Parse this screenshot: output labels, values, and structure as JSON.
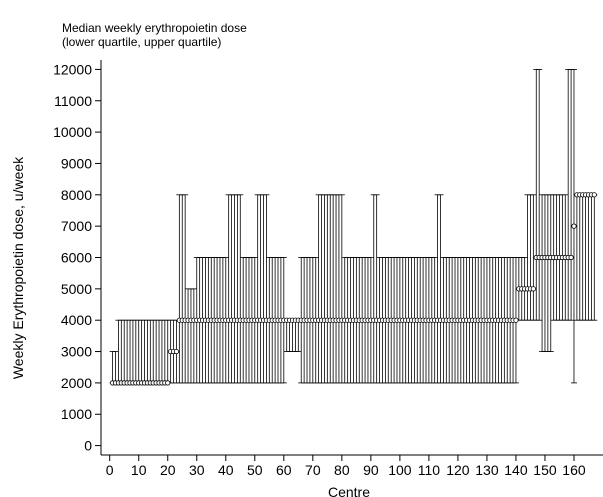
{
  "chart_data": {
    "type": "scatter",
    "title": "Median weekly erythropoietin dose",
    "subtitle": "(lower quartile, upper quartile)",
    "xlabel": "Centre",
    "ylabel": "Weekly Erythropoietin dose, u/week",
    "xlim": [
      -3,
      170
    ],
    "ylim": [
      -300,
      12300
    ],
    "xticks": [
      0,
      10,
      20,
      30,
      40,
      50,
      60,
      70,
      80,
      90,
      100,
      110,
      120,
      130,
      140,
      150,
      160
    ],
    "yticks": [
      0,
      1000,
      2000,
      3000,
      4000,
      5000,
      6000,
      7000,
      8000,
      9000,
      10000,
      11000,
      12000
    ],
    "grid": false,
    "legend": "none",
    "marker": "hollow-circle",
    "groups": [
      {
        "from": 1,
        "to": 2,
        "median": 2000,
        "q1": 2000,
        "q3": 3000
      },
      {
        "from": 3,
        "to": 20,
        "median": 2000,
        "q1": 2000,
        "q3": 4000
      },
      {
        "from": 21,
        "to": 23,
        "median": 3000,
        "q1": 2000,
        "q3": 4000
      },
      {
        "from": 24,
        "to": 26,
        "median": 4000,
        "q1": 2000,
        "q3": 8000
      },
      {
        "from": 27,
        "to": 29,
        "median": 4000,
        "q1": 2000,
        "q3": 5000
      },
      {
        "from": 30,
        "to": 40,
        "median": 4000,
        "q1": 2000,
        "q3": 6000
      },
      {
        "from": 41,
        "to": 45,
        "median": 4000,
        "q1": 2000,
        "q3": 8000
      },
      {
        "from": 46,
        "to": 50,
        "median": 4000,
        "q1": 2000,
        "q3": 6000
      },
      {
        "from": 51,
        "to": 54,
        "median": 4000,
        "q1": 2000,
        "q3": 8000
      },
      {
        "from": 55,
        "to": 60,
        "median": 4000,
        "q1": 2000,
        "q3": 6000
      },
      {
        "from": 61,
        "to": 65,
        "median": 4000,
        "q1": 3000,
        "q3": 4000
      },
      {
        "from": 66,
        "to": 71,
        "median": 4000,
        "q1": 2000,
        "q3": 6000
      },
      {
        "from": 72,
        "to": 80,
        "median": 4000,
        "q1": 2000,
        "q3": 8000
      },
      {
        "from": 81,
        "to": 90,
        "median": 4000,
        "q1": 2000,
        "q3": 6000
      },
      {
        "from": 91,
        "to": 92,
        "median": 4000,
        "q1": 2000,
        "q3": 8000
      },
      {
        "from": 93,
        "to": 105,
        "median": 4000,
        "q1": 2000,
        "q3": 6000
      },
      {
        "from": 106,
        "to": 112,
        "median": 4000,
        "q1": 2000,
        "q3": 6000
      },
      {
        "from": 113,
        "to": 114,
        "median": 4000,
        "q1": 2000,
        "q3": 8000
      },
      {
        "from": 115,
        "to": 125,
        "median": 4000,
        "q1": 2000,
        "q3": 6000
      },
      {
        "from": 126,
        "to": 140,
        "median": 4000,
        "q1": 2000,
        "q3": 6000
      },
      {
        "from": 141,
        "to": 143,
        "median": 5000,
        "q1": 4000,
        "q3": 6000
      },
      {
        "from": 144,
        "to": 146,
        "median": 5000,
        "q1": 4000,
        "q3": 8000
      },
      {
        "from": 147,
        "to": 148,
        "median": 6000,
        "q1": 4000,
        "q3": 12000
      },
      {
        "from": 149,
        "to": 152,
        "median": 6000,
        "q1": 3000,
        "q3": 8000
      },
      {
        "from": 153,
        "to": 157,
        "median": 6000,
        "q1": 4000,
        "q3": 8000
      },
      {
        "from": 158,
        "to": 159,
        "median": 6000,
        "q1": 4000,
        "q3": 12000
      },
      {
        "from": 160,
        "to": 160,
        "median": 7000,
        "q1": 2000,
        "q3": 12000
      },
      {
        "from": 161,
        "to": 167,
        "median": 8000,
        "q1": 4000,
        "q3": 8000
      }
    ]
  }
}
